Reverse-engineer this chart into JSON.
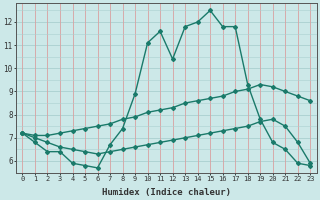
{
  "x": [
    0,
    1,
    2,
    3,
    4,
    5,
    6,
    7,
    8,
    9,
    10,
    11,
    12,
    13,
    14,
    15,
    16,
    17,
    18,
    19,
    20,
    21,
    22,
    23
  ],
  "line_main": [
    7.2,
    6.8,
    6.4,
    6.4,
    5.9,
    5.8,
    5.7,
    6.7,
    7.4,
    8.9,
    11.1,
    11.6,
    10.4,
    11.8,
    12.0,
    12.5,
    11.8,
    11.8,
    9.3,
    7.8,
    6.8,
    6.5,
    5.9,
    5.8
  ],
  "line_upper": [
    7.2,
    7.1,
    7.1,
    7.2,
    7.3,
    7.4,
    7.5,
    7.6,
    7.8,
    7.9,
    8.1,
    8.2,
    8.3,
    8.5,
    8.6,
    8.7,
    8.8,
    9.0,
    9.1,
    9.3,
    9.2,
    9.0,
    8.8,
    8.6
  ],
  "line_lower": [
    7.2,
    7.0,
    6.8,
    6.6,
    6.5,
    6.4,
    6.3,
    6.4,
    6.5,
    6.6,
    6.7,
    6.8,
    6.9,
    7.0,
    7.1,
    7.2,
    7.3,
    7.4,
    7.5,
    7.7,
    7.8,
    7.5,
    6.8,
    5.9
  ],
  "xlim": [
    -0.5,
    23.5
  ],
  "ylim": [
    5.5,
    12.8
  ],
  "yticks": [
    6,
    7,
    8,
    9,
    10,
    11,
    12
  ],
  "xticks": [
    0,
    1,
    2,
    3,
    4,
    5,
    6,
    7,
    8,
    9,
    10,
    11,
    12,
    13,
    14,
    15,
    16,
    17,
    18,
    19,
    20,
    21,
    22,
    23
  ],
  "xlabel": "Humidex (Indice chaleur)",
  "color_main": "#1a7a6a",
  "bg_color": "#cce8e8",
  "grid_color_teal": "#aacfcf",
  "grid_color_pink": "#d8a0a0",
  "marker": "D",
  "marker_size": 2.0,
  "line_width": 1.0
}
